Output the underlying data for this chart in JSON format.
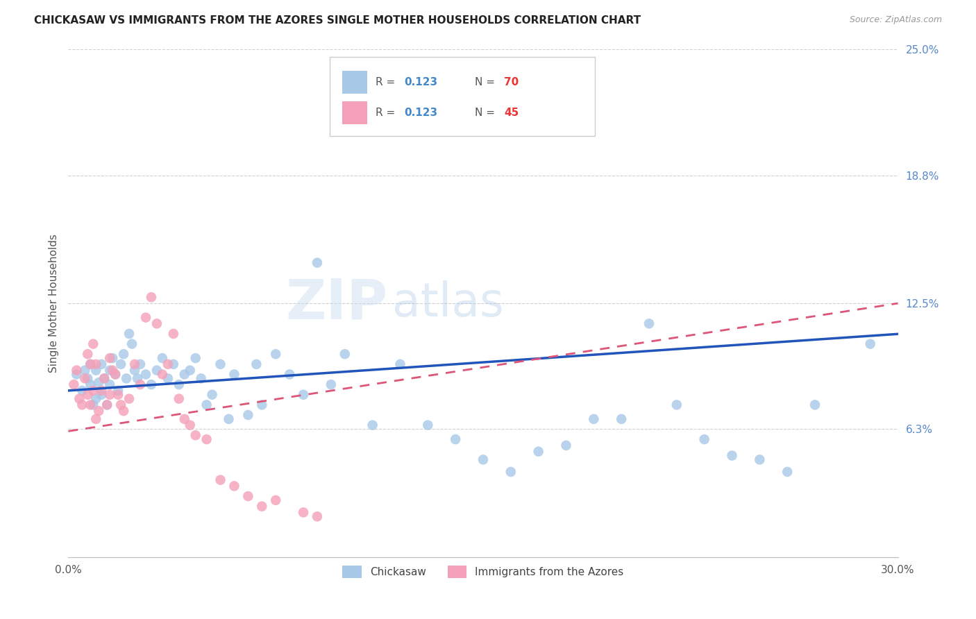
{
  "title": "CHICKASAW VS IMMIGRANTS FROM THE AZORES SINGLE MOTHER HOUSEHOLDS CORRELATION CHART",
  "source": "Source: ZipAtlas.com",
  "ylabel": "Single Mother Households",
  "xlim": [
    0.0,
    0.3
  ],
  "ylim": [
    0.0,
    0.25
  ],
  "ytick_labels_right": [
    "25.0%",
    "18.8%",
    "12.5%",
    "6.3%"
  ],
  "ytick_values_right": [
    0.25,
    0.188,
    0.125,
    0.063
  ],
  "series1_label": "Chickasaw",
  "series2_label": "Immigrants from the Azores",
  "series1_color": "#a8c8e8",
  "series2_color": "#f4a0b8",
  "series1_line_color": "#2255bb",
  "series2_line_color": "#dd5577",
  "watermark": "ZIPatlas",
  "chickasaw_x": [
    0.003,
    0.005,
    0.006,
    0.007,
    0.008,
    0.008,
    0.009,
    0.01,
    0.01,
    0.011,
    0.012,
    0.012,
    0.013,
    0.014,
    0.015,
    0.015,
    0.016,
    0.017,
    0.018,
    0.019,
    0.02,
    0.021,
    0.022,
    0.023,
    0.024,
    0.025,
    0.026,
    0.028,
    0.03,
    0.032,
    0.034,
    0.036,
    0.038,
    0.04,
    0.042,
    0.044,
    0.046,
    0.048,
    0.05,
    0.052,
    0.055,
    0.058,
    0.06,
    0.065,
    0.068,
    0.07,
    0.075,
    0.08,
    0.085,
    0.09,
    0.095,
    0.1,
    0.11,
    0.12,
    0.13,
    0.14,
    0.15,
    0.16,
    0.17,
    0.18,
    0.19,
    0.2,
    0.21,
    0.22,
    0.23,
    0.24,
    0.25,
    0.26,
    0.27,
    0.29
  ],
  "chickasaw_y": [
    0.09,
    0.082,
    0.092,
    0.088,
    0.085,
    0.095,
    0.075,
    0.092,
    0.078,
    0.086,
    0.08,
    0.095,
    0.088,
    0.075,
    0.092,
    0.085,
    0.098,
    0.09,
    0.082,
    0.095,
    0.1,
    0.088,
    0.11,
    0.105,
    0.092,
    0.088,
    0.095,
    0.09,
    0.085,
    0.092,
    0.098,
    0.088,
    0.095,
    0.085,
    0.09,
    0.092,
    0.098,
    0.088,
    0.075,
    0.08,
    0.095,
    0.068,
    0.09,
    0.07,
    0.095,
    0.075,
    0.1,
    0.09,
    0.08,
    0.145,
    0.085,
    0.1,
    0.065,
    0.095,
    0.065,
    0.058,
    0.048,
    0.042,
    0.052,
    0.055,
    0.068,
    0.068,
    0.115,
    0.075,
    0.058,
    0.05,
    0.048,
    0.042,
    0.075,
    0.105
  ],
  "azores_x": [
    0.002,
    0.003,
    0.004,
    0.005,
    0.006,
    0.007,
    0.007,
    0.008,
    0.008,
    0.009,
    0.009,
    0.01,
    0.01,
    0.011,
    0.012,
    0.013,
    0.014,
    0.015,
    0.015,
    0.016,
    0.017,
    0.018,
    0.019,
    0.02,
    0.022,
    0.024,
    0.026,
    0.028,
    0.03,
    0.032,
    0.034,
    0.036,
    0.038,
    0.04,
    0.042,
    0.044,
    0.046,
    0.05,
    0.055,
    0.06,
    0.065,
    0.07,
    0.075,
    0.085,
    0.09
  ],
  "azores_y": [
    0.085,
    0.092,
    0.078,
    0.075,
    0.088,
    0.1,
    0.08,
    0.095,
    0.075,
    0.105,
    0.082,
    0.068,
    0.095,
    0.072,
    0.082,
    0.088,
    0.075,
    0.08,
    0.098,
    0.092,
    0.09,
    0.08,
    0.075,
    0.072,
    0.078,
    0.095,
    0.085,
    0.118,
    0.128,
    0.115,
    0.09,
    0.095,
    0.11,
    0.078,
    0.068,
    0.065,
    0.06,
    0.058,
    0.038,
    0.035,
    0.03,
    0.025,
    0.028,
    0.022,
    0.02
  ]
}
